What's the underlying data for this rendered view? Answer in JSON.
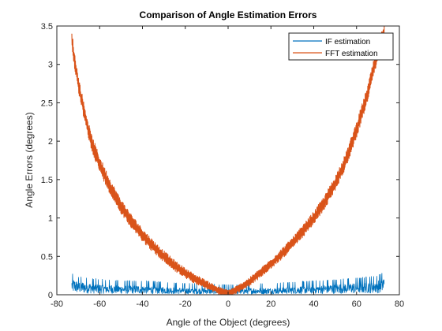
{
  "chart_data": {
    "type": "line",
    "title": "Comparison of Angle Estimation Errors",
    "xlabel": "Angle of the Object (degrees)",
    "ylabel": "Angle Errors (degrees)",
    "xlim": [
      -80,
      80
    ],
    "ylim": [
      0,
      3.5
    ],
    "xticks": [
      "-80",
      "-60",
      "-40",
      "-20",
      "0",
      "20",
      "40",
      "60",
      "80"
    ],
    "yticks": [
      "0",
      "0.5",
      "1",
      "1.5",
      "2",
      "2.5",
      "3",
      "3.5"
    ],
    "grid": false,
    "legend_position": "top-right",
    "series": [
      {
        "name": "IF estimation",
        "color": "#0072BD",
        "x": [
          -73,
          -70,
          -60,
          -50,
          -40,
          -30,
          -20,
          -10,
          -5,
          0,
          5,
          10,
          20,
          30,
          40,
          50,
          60,
          70,
          73
        ],
        "y": [
          0.12,
          0.1,
          0.08,
          0.07,
          0.07,
          0.06,
          0.05,
          0.05,
          0.04,
          0.04,
          0.04,
          0.05,
          0.05,
          0.06,
          0.07,
          0.08,
          0.09,
          0.11,
          0.14
        ]
      },
      {
        "name": "FFT estimation",
        "color": "#D95319",
        "x": [
          -73,
          -72,
          -70,
          -67,
          -64,
          -60,
          -55,
          -50,
          -45,
          -40,
          -35,
          -30,
          -25,
          -20,
          -15,
          -10,
          -5,
          -2,
          0,
          2,
          5,
          10,
          15,
          20,
          25,
          30,
          35,
          40,
          45,
          50,
          55,
          60,
          65,
          68,
          71,
          73
        ],
        "y": [
          3.35,
          3.1,
          2.75,
          2.35,
          2.0,
          1.7,
          1.4,
          1.15,
          0.95,
          0.78,
          0.63,
          0.5,
          0.38,
          0.28,
          0.2,
          0.13,
          0.06,
          0.03,
          0.02,
          0.04,
          0.08,
          0.17,
          0.28,
          0.4,
          0.53,
          0.67,
          0.83,
          1.0,
          1.2,
          1.45,
          1.75,
          2.15,
          2.6,
          2.95,
          3.25,
          3.45
        ]
      }
    ]
  }
}
